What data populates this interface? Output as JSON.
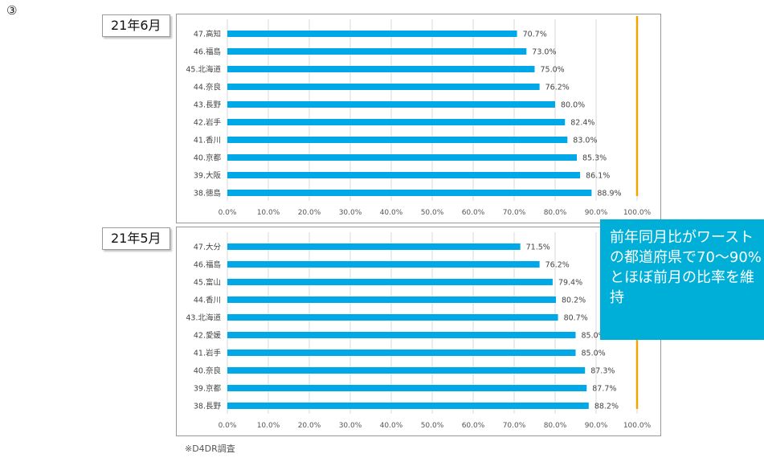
{
  "marker": "③",
  "source_note": "※D4DR調査",
  "callout_text": "前年同月比がワーストの都道府県で70〜90%とほぼ前月の比率を維持",
  "colors": {
    "bar": "#00a8e8",
    "reference_line": "#f0a500",
    "callout": "#00afd7"
  },
  "chart_data": [
    {
      "type": "bar",
      "orientation": "horizontal",
      "period_label": "21年6月",
      "categories": [
        "47.高知",
        "46.福島",
        "45.北海道",
        "44.奈良",
        "43.長野",
        "42.岩手",
        "41.香川",
        "40.京都",
        "39.大阪",
        "38.徳島"
      ],
      "values": [
        70.7,
        73.0,
        75.0,
        76.2,
        80.0,
        82.4,
        83.0,
        85.3,
        86.1,
        88.9
      ],
      "value_labels": [
        "70.7%",
        "73.0%",
        "75.0%",
        "76.2%",
        "80.0%",
        "82.4%",
        "83.0%",
        "85.3%",
        "86.1%",
        "88.9%"
      ],
      "xlim": [
        0,
        100
      ],
      "x_ticks": [
        "0.0%",
        "10.0%",
        "20.0%",
        "30.0%",
        "40.0%",
        "50.0%",
        "60.0%",
        "70.0%",
        "80.0%",
        "90.0%",
        "100.0%"
      ],
      "reference_line": 100,
      "grid": true
    },
    {
      "type": "bar",
      "orientation": "horizontal",
      "period_label": "21年5月",
      "categories": [
        "47.大分",
        "46.福島",
        "45.富山",
        "44.香川",
        "43.北海道",
        "42.愛媛",
        "41.岩手",
        "40.奈良",
        "39.京都",
        "38.長野"
      ],
      "values": [
        71.5,
        76.2,
        79.4,
        80.2,
        80.7,
        85.0,
        85.0,
        87.3,
        87.7,
        88.2
      ],
      "value_labels": [
        "71.5%",
        "76.2%",
        "79.4%",
        "80.2%",
        "80.7%",
        "85.0%",
        "85.0%",
        "87.3%",
        "87.7%",
        "88.2%"
      ],
      "xlim": [
        0,
        100
      ],
      "x_ticks": [
        "0.0%",
        "10.0%",
        "20.0%",
        "30.0%",
        "40.0%",
        "50.0%",
        "60.0%",
        "70.0%",
        "80.0%",
        "90.0%",
        "100.0%"
      ],
      "reference_line": 100,
      "grid": true
    }
  ]
}
